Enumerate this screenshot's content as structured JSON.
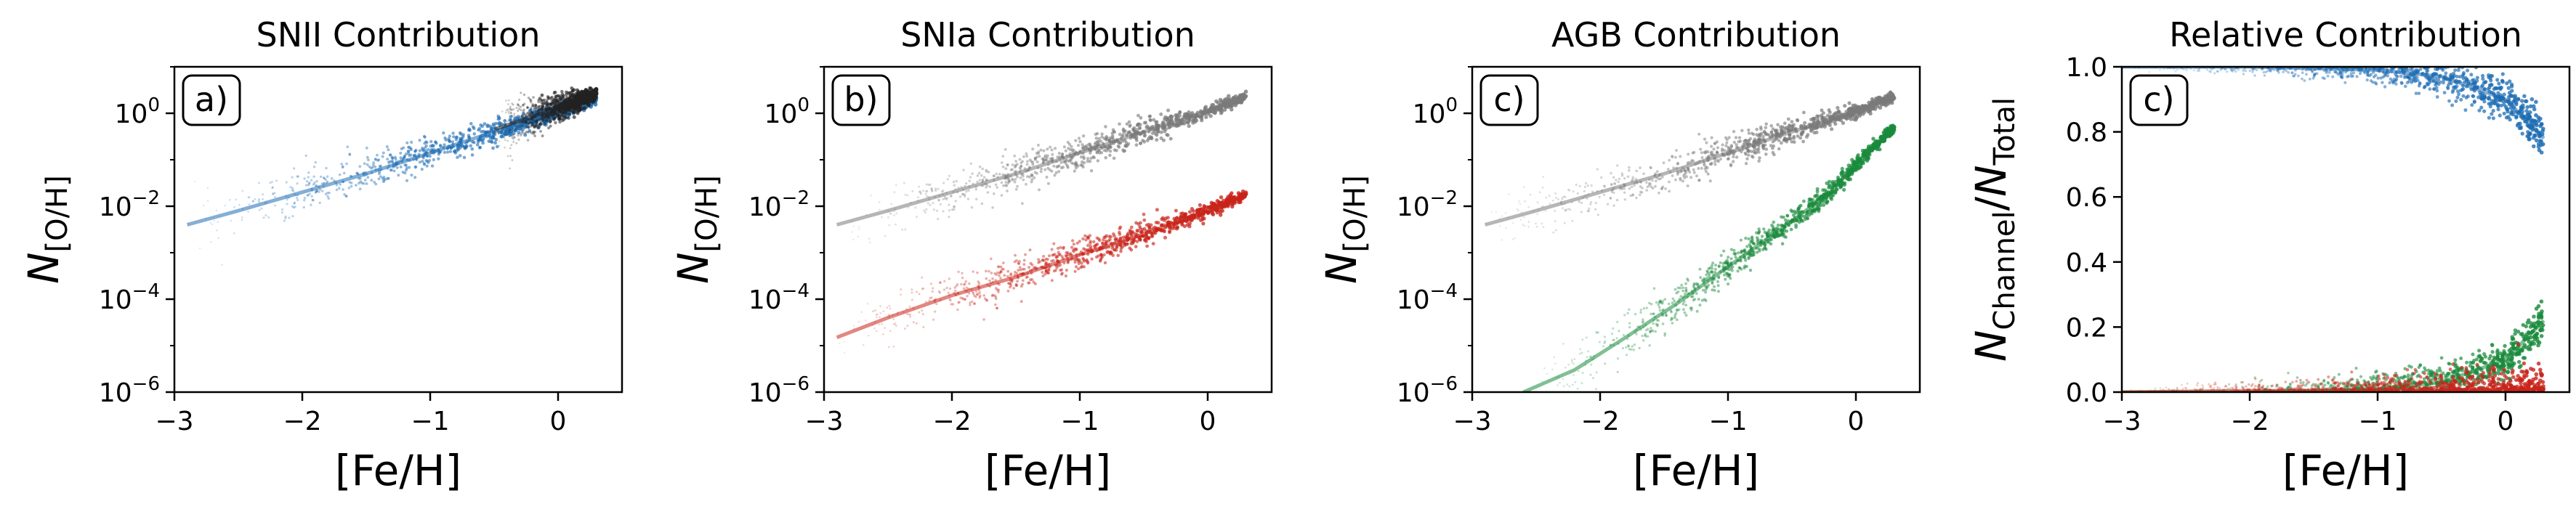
{
  "chart_data": [
    {
      "type": "scatter",
      "title": "SNII Contribution",
      "panel_label": "a)",
      "xlabel": "[Fe/H]",
      "ylabel_main": "N",
      "ylabel_sub": "[O/H]",
      "yscale": "log",
      "xlim": [
        -3.0,
        0.5
      ],
      "ylim": [
        1e-06,
        10
      ],
      "xticks": [
        -3,
        -2,
        -1,
        0
      ],
      "xticklabels": [
        "−3",
        "−2",
        "−1",
        "0"
      ],
      "yticks": [
        1e-06,
        0.0001,
        0.01,
        1
      ],
      "yticklabels": [
        {
          "base": "10",
          "exp": "−6"
        },
        {
          "base": "10",
          "exp": "−4"
        },
        {
          "base": "10",
          "exp": "−2"
        },
        {
          "base": "10",
          "exp": "0"
        }
      ],
      "series": [
        {
          "color": "#1f6db3",
          "x": [
            -2.9,
            -2.5,
            -2.0,
            -1.5,
            -1.0,
            -0.5,
            0.0,
            0.3
          ],
          "y": [
            0.004,
            0.008,
            0.02,
            0.05,
            0.14,
            0.4,
            1.1,
            2.0
          ]
        },
        {
          "color": "#222222",
          "x": [
            -0.5,
            0.0,
            0.3
          ],
          "y": [
            0.45,
            1.3,
            2.6
          ]
        }
      ]
    },
    {
      "type": "scatter",
      "title": "SNIa Contribution",
      "panel_label": "b)",
      "xlabel": "[Fe/H]",
      "ylabel_main": "N",
      "ylabel_sub": "[O/H]",
      "yscale": "log",
      "xlim": [
        -3.0,
        0.5
      ],
      "ylim": [
        1e-06,
        10
      ],
      "xticks": [
        -3,
        -2,
        -1,
        0
      ],
      "xticklabels": [
        "−3",
        "−2",
        "−1",
        "0"
      ],
      "yticks": [
        1e-06,
        0.0001,
        0.01,
        1
      ],
      "yticklabels": [
        {
          "base": "10",
          "exp": "−6"
        },
        {
          "base": "10",
          "exp": "−4"
        },
        {
          "base": "10",
          "exp": "−2"
        },
        {
          "base": "10",
          "exp": "0"
        }
      ],
      "series": [
        {
          "color": "#7a7a7a",
          "x": [
            -2.9,
            -2.5,
            -2.0,
            -1.5,
            -1.0,
            -0.5,
            0.0,
            0.3
          ],
          "y": [
            0.004,
            0.008,
            0.02,
            0.05,
            0.14,
            0.4,
            1.1,
            2.3
          ]
        },
        {
          "color": "#c8241a",
          "x": [
            -2.9,
            -2.5,
            -2.0,
            -1.5,
            -1.0,
            -0.5,
            0.0,
            0.3
          ],
          "y": [
            1.5e-05,
            4e-05,
            0.00012,
            0.0003,
            0.0009,
            0.0025,
            0.008,
            0.018
          ]
        }
      ]
    },
    {
      "type": "scatter",
      "title": "AGB Contribution",
      "panel_label": "c)",
      "xlabel": "[Fe/H]",
      "ylabel_main": "N",
      "ylabel_sub": "[O/H]",
      "yscale": "log",
      "xlim": [
        -3.0,
        0.5
      ],
      "ylim": [
        1e-06,
        10
      ],
      "xticks": [
        -3,
        -2,
        -1,
        0
      ],
      "xticklabels": [
        "−3",
        "−2",
        "−1",
        "0"
      ],
      "yticks": [
        1e-06,
        0.0001,
        0.01,
        1
      ],
      "yticklabels": [
        {
          "base": "10",
          "exp": "−6"
        },
        {
          "base": "10",
          "exp": "−4"
        },
        {
          "base": "10",
          "exp": "−2"
        },
        {
          "base": "10",
          "exp": "0"
        }
      ],
      "series": [
        {
          "color": "#7a7a7a",
          "x": [
            -2.9,
            -2.5,
            -2.0,
            -1.5,
            -1.0,
            -0.5,
            0.0,
            0.3
          ],
          "y": [
            0.004,
            0.008,
            0.02,
            0.05,
            0.14,
            0.4,
            1.1,
            2.3
          ]
        },
        {
          "color": "#1a8a3c",
          "x": [
            -2.6,
            -2.2,
            -1.8,
            -1.4,
            -1.0,
            -0.6,
            -0.2,
            0.1,
            0.3
          ],
          "y": [
            1e-06,
            3e-06,
            1.5e-05,
            8e-05,
            0.0005,
            0.003,
            0.02,
            0.15,
            0.5
          ]
        }
      ]
    },
    {
      "type": "scatter",
      "title": "Relative Contribution",
      "panel_label": "c)",
      "xlabel": "[Fe/H]",
      "ylabel_main": "N",
      "ylabel_sub": "Channel",
      "ylabel_div": "/",
      "ylabel_main2": "N",
      "ylabel_sub2": "Total",
      "yscale": "linear",
      "xlim": [
        -3.0,
        0.5
      ],
      "ylim": [
        0.0,
        1.0
      ],
      "xticks": [
        -3,
        -2,
        -1,
        0
      ],
      "xticklabels": [
        "−3",
        "−2",
        "−1",
        "0"
      ],
      "yticks": [
        0.0,
        0.2,
        0.4,
        0.6,
        0.8,
        1.0
      ],
      "yticklabels": [
        "0.0",
        "0.2",
        "0.4",
        "0.6",
        "0.8",
        "1.0"
      ],
      "series": [
        {
          "color": "#1f6db3",
          "x": [
            -3.0,
            -2.0,
            -1.5,
            -1.0,
            -0.5,
            0.0,
            0.3
          ],
          "y": [
            1.0,
            1.0,
            0.995,
            0.99,
            0.97,
            0.9,
            0.78
          ]
        },
        {
          "color": "#1a8a3c",
          "x": [
            -3.0,
            -2.0,
            -1.5,
            -1.0,
            -0.5,
            0.0,
            0.3
          ],
          "y": [
            0.0,
            0.0,
            0.003,
            0.01,
            0.03,
            0.1,
            0.22
          ]
        },
        {
          "color": "#c8241a",
          "x": [
            -3.0,
            -2.0,
            -1.0,
            0.0,
            0.3
          ],
          "y": [
            0.0,
            0.004,
            0.005,
            0.008,
            0.01
          ]
        }
      ]
    }
  ],
  "colors": {
    "snii": "#1f6db3",
    "snia": "#c8241a",
    "agb": "#1a8a3c",
    "total": "#7a7a7a"
  }
}
